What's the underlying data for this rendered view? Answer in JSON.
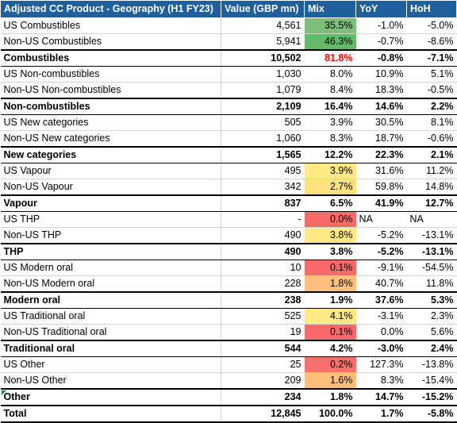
{
  "header": {
    "product": "Adjusted CC Product - Geography (H1 FY23)",
    "value": "Value (GBP mn)",
    "mix": "Mix",
    "yoy": "YoY",
    "hoh": "HoH"
  },
  "rows": [
    {
      "label": "US Combustibles",
      "value": "4,561",
      "mix": "35.5%",
      "yoy": "-1.0%",
      "hoh": "-5.0%",
      "bold": false,
      "mix_bg": "#7bbf7a"
    },
    {
      "label": "Non-US Combustibles",
      "value": "5,941",
      "mix": "46.3%",
      "yoy": "-0.7%",
      "hoh": "-8.6%",
      "bold": false,
      "mix_bg": "#65b86a"
    },
    {
      "label": "Combustibles",
      "value": "10,502",
      "mix": "81.8%",
      "yoy": "-0.8%",
      "hoh": "-7.1%",
      "bold": true,
      "mix_color": "#ff0000"
    },
    {
      "label": "US Non-combustibles",
      "value": "1,030",
      "mix": "8.0%",
      "yoy": "10.9%",
      "hoh": "5.1%",
      "bold": false
    },
    {
      "label": "Non-US Non-combustibles",
      "value": "1,079",
      "mix": "8.4%",
      "yoy": "18.3%",
      "hoh": "-0.5%",
      "bold": false
    },
    {
      "label": "Non-combustibles",
      "value": "2,109",
      "mix": "16.4%",
      "yoy": "14.6%",
      "hoh": "2.2%",
      "bold": true
    },
    {
      "label": "US New categories",
      "value": "505",
      "mix": "3.9%",
      "yoy": "30.5%",
      "hoh": "8.1%",
      "bold": false
    },
    {
      "label": "Non-US New categories",
      "value": "1,060",
      "mix": "8.3%",
      "yoy": "18.7%",
      "hoh": "-0.6%",
      "bold": false
    },
    {
      "label": "New categories",
      "value": "1,565",
      "mix": "12.2%",
      "yoy": "22.3%",
      "hoh": "2.1%",
      "bold": true
    },
    {
      "label": "US Vapour",
      "value": "495",
      "mix": "3.9%",
      "yoy": "31.6%",
      "hoh": "11.2%",
      "bold": false,
      "mix_bg": "#ffe885"
    },
    {
      "label": "Non-US Vapour",
      "value": "342",
      "mix": "2.7%",
      "yoy": "59.8%",
      "hoh": "14.8%",
      "bold": false,
      "mix_bg": "#ffe27f"
    },
    {
      "label": "Vapour",
      "value": "837",
      "mix": "6.5%",
      "yoy": "41.9%",
      "hoh": "12.7%",
      "bold": true
    },
    {
      "label": "US THP",
      "value": "-",
      "mix": "0.0%",
      "yoy": "NA",
      "hoh": "NA",
      "bold": false,
      "mix_bg": "#f8696b",
      "na": true
    },
    {
      "label": "Non-US THP",
      "value": "490",
      "mix": "3.8%",
      "yoy": "-5.2%",
      "hoh": "-13.1%",
      "bold": false,
      "mix_bg": "#ffe885"
    },
    {
      "label": "THP",
      "value": "490",
      "mix": "3.8%",
      "yoy": "-5.2%",
      "hoh": "-13.1%",
      "bold": true
    },
    {
      "label": "US Modern oral",
      "value": "10",
      "mix": "0.1%",
      "yoy": "-9.1%",
      "hoh": "-54.5%",
      "bold": false,
      "mix_bg": "#f8696b"
    },
    {
      "label": "Non-US Modern oral",
      "value": "228",
      "mix": "1.8%",
      "yoy": "40.7%",
      "hoh": "11.8%",
      "bold": false,
      "mix_bg": "#fdc07c"
    },
    {
      "label": "Modern oral",
      "value": "238",
      "mix": "1.9%",
      "yoy": "37.6%",
      "hoh": "5.3%",
      "bold": true
    },
    {
      "label": "US Traditional oral",
      "value": "525",
      "mix": "4.1%",
      "yoy": "-3.1%",
      "hoh": "2.3%",
      "bold": false,
      "mix_bg": "#ffe885"
    },
    {
      "label": "Non-US Traditional oral",
      "value": "19",
      "mix": "0.1%",
      "yoy": "0.0%",
      "hoh": "5.6%",
      "bold": false,
      "mix_bg": "#f8696b"
    },
    {
      "label": "Traditional oral",
      "value": "544",
      "mix": "4.2%",
      "yoy": "-3.0%",
      "hoh": "2.4%",
      "bold": true
    },
    {
      "label": "US Other",
      "value": "25",
      "mix": "0.2%",
      "yoy": "127.3%",
      "hoh": "-13.8%",
      "bold": false,
      "mix_bg": "#f8706c"
    },
    {
      "label": "Non-US Other",
      "value": "209",
      "mix": "1.6%",
      "yoy": "8.3%",
      "hoh": "-15.4%",
      "bold": false,
      "mix_bg": "#fdbf7b"
    },
    {
      "label": "Other",
      "value": "234",
      "mix": "1.8%",
      "yoy": "14.7%",
      "hoh": "-15.2%",
      "bold": true,
      "note_marker": true
    },
    {
      "label": "Total",
      "value": "12,845",
      "mix": "100.0%",
      "yoy": "1.7%",
      "hoh": "-5.8%",
      "bold": true,
      "total": true
    }
  ]
}
